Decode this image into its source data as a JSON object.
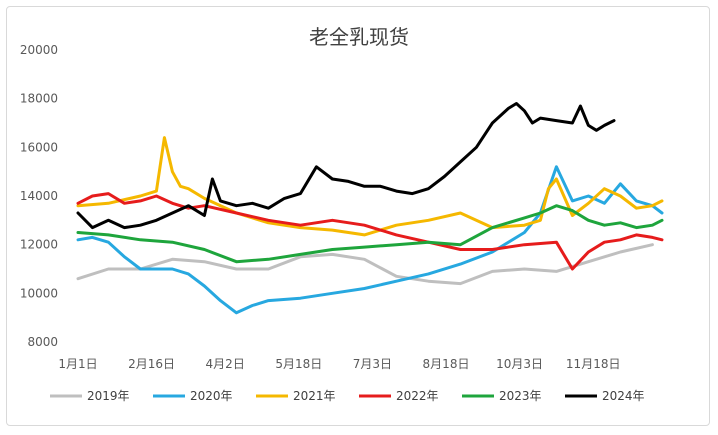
{
  "chart_data": {
    "type": "line",
    "title": "老全乳现货",
    "xlabel": "",
    "ylabel": "",
    "ylim": [
      8000,
      20000
    ],
    "yticks": [
      8000,
      10000,
      12000,
      14000,
      16000,
      18000,
      20000
    ],
    "x_tick_labels": [
      "1月1日",
      "2月16日",
      "4月2日",
      "5月18日",
      "7月3日",
      "8月18日",
      "10月3日",
      "11月18日"
    ],
    "x_tick_days": [
      1,
      47,
      93,
      139,
      185,
      231,
      277,
      323
    ],
    "xlim": [
      1,
      366
    ],
    "grid": false,
    "legend_position": "bottom",
    "series": [
      {
        "name": "2019年",
        "color": "#bfbfbf",
        "x": [
          1,
          20,
          40,
          60,
          80,
          100,
          120,
          140,
          160,
          180,
          200,
          220,
          240,
          260,
          280,
          300,
          320,
          340,
          360
        ],
        "values": [
          10600,
          11000,
          11000,
          11400,
          11300,
          11000,
          11000,
          11500,
          11600,
          11400,
          10700,
          10500,
          10400,
          10900,
          11000,
          10900,
          11300,
          11700,
          12000
        ]
      },
      {
        "name": "2020年",
        "color": "#27a8e0",
        "x": [
          1,
          10,
          20,
          30,
          40,
          50,
          60,
          70,
          80,
          90,
          100,
          110,
          120,
          140,
          160,
          180,
          200,
          220,
          240,
          260,
          280,
          290,
          300,
          310,
          320,
          330,
          340,
          350,
          360,
          366
        ],
        "values": [
          12200,
          12300,
          12100,
          11500,
          11000,
          11000,
          11000,
          10800,
          10300,
          9700,
          9200,
          9500,
          9700,
          9800,
          10000,
          10200,
          10500,
          10800,
          11200,
          11700,
          12500,
          13300,
          15200,
          13800,
          14000,
          13700,
          14500,
          13800,
          13600,
          13300
        ]
      },
      {
        "name": "2021年",
        "color": "#f5b800",
        "x": [
          1,
          20,
          40,
          50,
          55,
          60,
          65,
          70,
          80,
          100,
          120,
          140,
          160,
          180,
          200,
          220,
          240,
          260,
          280,
          290,
          295,
          300,
          310,
          320,
          330,
          340,
          350,
          360,
          366
        ],
        "values": [
          13600,
          13700,
          14000,
          14200,
          16400,
          15000,
          14400,
          14300,
          13900,
          13300,
          12900,
          12700,
          12600,
          12400,
          12800,
          13000,
          13300,
          12700,
          12800,
          13000,
          14300,
          14700,
          13200,
          13700,
          14300,
          14000,
          13500,
          13600,
          13800
        ]
      },
      {
        "name": "2022年",
        "color": "#e61c1c",
        "x": [
          1,
          10,
          20,
          30,
          40,
          50,
          60,
          70,
          80,
          100,
          120,
          140,
          160,
          180,
          200,
          220,
          240,
          260,
          280,
          300,
          310,
          320,
          330,
          340,
          350,
          360,
          366
        ],
        "values": [
          13700,
          14000,
          14100,
          13700,
          13800,
          14000,
          13700,
          13500,
          13600,
          13300,
          13000,
          12800,
          13000,
          12800,
          12400,
          12100,
          11800,
          11800,
          12000,
          12100,
          11000,
          11700,
          12100,
          12200,
          12400,
          12300,
          12200
        ]
      },
      {
        "name": "2023年",
        "color": "#1ea53c",
        "x": [
          1,
          20,
          40,
          60,
          80,
          100,
          120,
          140,
          160,
          180,
          200,
          220,
          240,
          260,
          280,
          290,
          300,
          310,
          320,
          330,
          340,
          350,
          360,
          366
        ],
        "values": [
          12500,
          12400,
          12200,
          12100,
          11800,
          11300,
          11400,
          11600,
          11800,
          11900,
          12000,
          12100,
          12000,
          12700,
          13100,
          13300,
          13600,
          13400,
          13000,
          12800,
          12900,
          12700,
          12800,
          13000
        ]
      },
      {
        "name": "2024年",
        "color": "#000000",
        "x": [
          1,
          10,
          20,
          30,
          40,
          50,
          60,
          70,
          80,
          85,
          90,
          95,
          100,
          110,
          120,
          130,
          140,
          150,
          160,
          170,
          180,
          190,
          200,
          210,
          220,
          230,
          240,
          250,
          260,
          270,
          275,
          280,
          285,
          290,
          300,
          310,
          315,
          320,
          325,
          330,
          336
        ],
        "values": [
          13300,
          12700,
          13000,
          12700,
          12800,
          13000,
          13300,
          13600,
          13200,
          14700,
          13800,
          13700,
          13600,
          13700,
          13500,
          13900,
          14100,
          15200,
          14700,
          14600,
          14400,
          14400,
          14200,
          14100,
          14300,
          14800,
          15400,
          16000,
          17000,
          17600,
          17800,
          17500,
          17000,
          17200,
          17100,
          17000,
          17700,
          16900,
          16700,
          16900,
          17100
        ]
      }
    ]
  }
}
